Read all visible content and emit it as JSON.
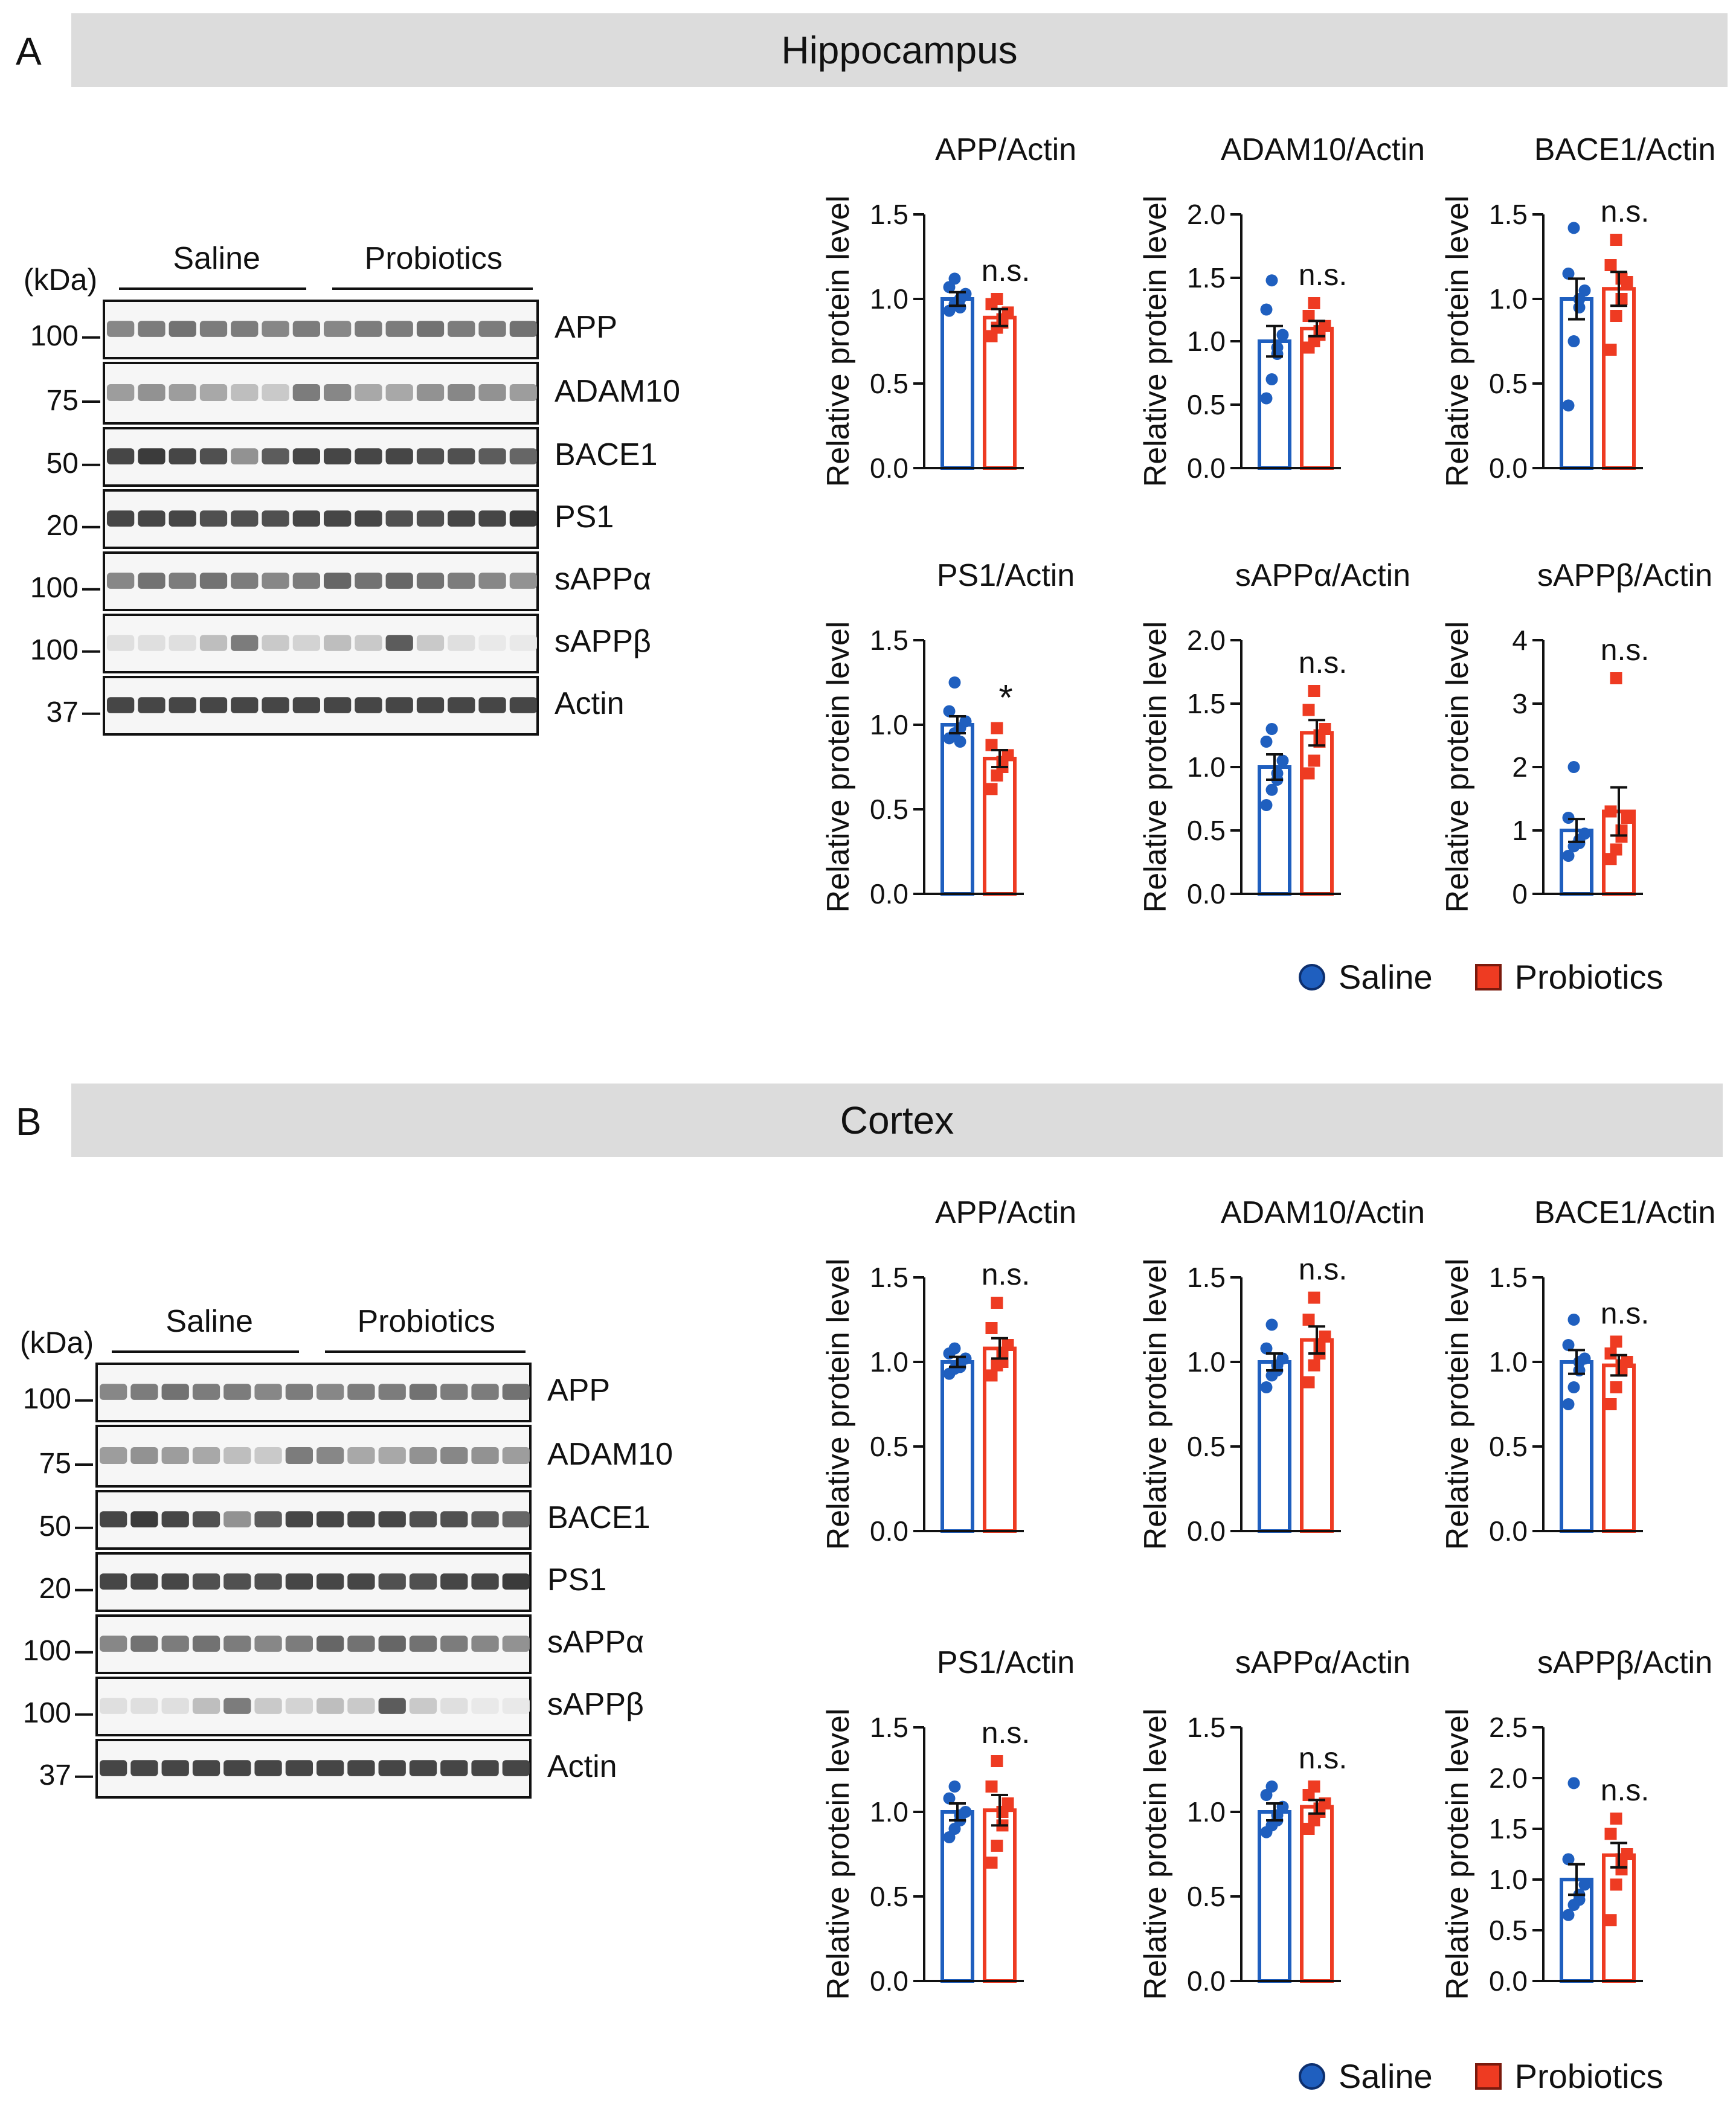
{
  "colors": {
    "saline": "#1f5fbf",
    "probiotics": "#ee3b22",
    "banner": "#dcdcdc"
  },
  "legend": {
    "saline": "Saline",
    "probiotics": "Probiotics"
  },
  "ylabel": "Relative protein level",
  "sections": [
    {
      "letter": "A",
      "title": "Hippocampus",
      "blot": {
        "kda_label": "(kDa)",
        "groups": [
          "Saline",
          "Probiotics"
        ],
        "bands": [
          "APP",
          "ADAM10",
          "BACE1",
          "PS1",
          "sAPPα",
          "sAPPβ",
          "Actin"
        ],
        "markers": [
          "100",
          "75",
          "50",
          "20",
          "100",
          "100",
          "37"
        ]
      }
    },
    {
      "letter": "B",
      "title": "Cortex",
      "blot": {
        "kda_label": "(kDa)",
        "groups": [
          "Saline",
          "Probiotics"
        ],
        "bands": [
          "APP",
          "ADAM10",
          "BACE1",
          "PS1",
          "sAPPα",
          "sAPPβ",
          "Actin"
        ],
        "markers": [
          "100",
          "75",
          "50",
          "20",
          "100",
          "100",
          "37"
        ]
      }
    }
  ],
  "chart_data": [
    {
      "section": "Hippocampus",
      "type": "bar",
      "title": "APP/Actin",
      "ylabel": "Relative protein level",
      "ylim": [
        0,
        1.5
      ],
      "yticks": [
        "0.0",
        "0.5",
        "1.0",
        "1.5"
      ],
      "annotation": "n.s.",
      "categories": [
        "Saline",
        "Probiotics"
      ],
      "series": [
        {
          "name": "Saline",
          "mean": 1.0,
          "sem": 0.04,
          "points": [
            0.93,
            0.97,
            1.0,
            1.03,
            1.07,
            1.12,
            0.95
          ]
        },
        {
          "name": "Probiotics",
          "mean": 0.89,
          "sem": 0.05,
          "points": [
            0.78,
            0.83,
            0.88,
            0.92,
            0.97,
            1.0,
            0.86
          ]
        }
      ]
    },
    {
      "section": "Hippocampus",
      "type": "bar",
      "title": "ADAM10/Actin",
      "ylabel": "Relative protein level",
      "ylim": [
        0,
        2.0
      ],
      "yticks": [
        "0.0",
        "0.5",
        "1.0",
        "1.5",
        "2.0"
      ],
      "annotation": "n.s.",
      "categories": [
        "Saline",
        "Probiotics"
      ],
      "series": [
        {
          "name": "Saline",
          "mean": 1.0,
          "sem": 0.12,
          "points": [
            0.55,
            0.7,
            0.95,
            1.05,
            1.25,
            1.48,
            0.9
          ]
        },
        {
          "name": "Probiotics",
          "mean": 1.1,
          "sem": 0.06,
          "points": [
            0.95,
            1.0,
            1.08,
            1.12,
            1.2,
            1.3,
            1.05
          ]
        }
      ]
    },
    {
      "section": "Hippocampus",
      "type": "bar",
      "title": "BACE1/Actin",
      "ylabel": "Relative protein level",
      "ylim": [
        0,
        1.5
      ],
      "yticks": [
        "0.0",
        "0.5",
        "1.0",
        "1.5"
      ],
      "annotation": "n.s.",
      "categories": [
        "Saline",
        "Probiotics"
      ],
      "series": [
        {
          "name": "Saline",
          "mean": 1.0,
          "sem": 0.12,
          "points": [
            0.37,
            0.75,
            0.95,
            1.05,
            1.15,
            1.42,
            1.0
          ]
        },
        {
          "name": "Probiotics",
          "mean": 1.06,
          "sem": 0.1,
          "points": [
            0.7,
            0.9,
            1.0,
            1.1,
            1.2,
            1.35,
            1.12
          ]
        }
      ]
    },
    {
      "section": "Hippocampus",
      "type": "bar",
      "title": "PS1/Actin",
      "ylabel": "Relative protein level",
      "ylim": [
        0,
        1.5
      ],
      "yticks": [
        "0.0",
        "0.5",
        "1.0",
        "1.5"
      ],
      "annotation": "*",
      "categories": [
        "Saline",
        "Probiotics"
      ],
      "series": [
        {
          "name": "Saline",
          "mean": 1.0,
          "sem": 0.05,
          "points": [
            0.92,
            0.95,
            0.98,
            1.02,
            1.08,
            1.25,
            0.9
          ]
        },
        {
          "name": "Probiotics",
          "mean": 0.8,
          "sem": 0.05,
          "points": [
            0.62,
            0.7,
            0.78,
            0.82,
            0.88,
            0.98,
            0.75
          ]
        }
      ]
    },
    {
      "section": "Hippocampus",
      "type": "bar",
      "title": "sAPPα/Actin",
      "ylabel": "Relative protein level",
      "ylim": [
        0,
        2.0
      ],
      "yticks": [
        "0.0",
        "0.5",
        "1.0",
        "1.5",
        "2.0"
      ],
      "annotation": "n.s.",
      "categories": [
        "Saline",
        "Probiotics"
      ],
      "series": [
        {
          "name": "Saline",
          "mean": 1.0,
          "sem": 0.1,
          "points": [
            0.7,
            0.82,
            0.95,
            1.05,
            1.2,
            1.3,
            0.9
          ]
        },
        {
          "name": "Probiotics",
          "mean": 1.27,
          "sem": 0.1,
          "points": [
            0.95,
            1.05,
            1.2,
            1.3,
            1.45,
            1.6,
            1.25
          ]
        }
      ]
    },
    {
      "section": "Hippocampus",
      "type": "bar",
      "title": "sAPPβ/Actin",
      "ylabel": "Relative protein level",
      "ylim": [
        0,
        4
      ],
      "yticks": [
        "0",
        "1",
        "2",
        "3",
        "4"
      ],
      "annotation": "n.s.",
      "categories": [
        "Saline",
        "Probiotics"
      ],
      "series": [
        {
          "name": "Saline",
          "mean": 1.0,
          "sem": 0.18,
          "points": [
            0.6,
            0.75,
            0.85,
            0.95,
            1.2,
            2.0,
            0.8
          ]
        },
        {
          "name": "Probiotics",
          "mean": 1.3,
          "sem": 0.38,
          "points": [
            0.55,
            0.7,
            0.9,
            1.2,
            1.3,
            3.4,
            1.0
          ]
        }
      ]
    },
    {
      "section": "Cortex",
      "type": "bar",
      "title": "APP/Actin",
      "ylabel": "Relative protein level",
      "ylim": [
        0,
        1.5
      ],
      "yticks": [
        "0.0",
        "0.5",
        "1.0",
        "1.5"
      ],
      "annotation": "n.s.",
      "categories": [
        "Saline",
        "Probiotics"
      ],
      "series": [
        {
          "name": "Saline",
          "mean": 1.0,
          "sem": 0.03,
          "points": [
            0.93,
            0.96,
            0.99,
            1.02,
            1.05,
            1.08,
            0.97
          ]
        },
        {
          "name": "Probiotics",
          "mean": 1.08,
          "sem": 0.06,
          "points": [
            0.92,
            0.98,
            1.05,
            1.1,
            1.2,
            1.35,
            1.0
          ]
        }
      ]
    },
    {
      "section": "Cortex",
      "type": "bar",
      "title": "ADAM10/Actin",
      "ylabel": "Relative protein level",
      "ylim": [
        0,
        1.5
      ],
      "yticks": [
        "0.0",
        "0.5",
        "1.0",
        "1.5"
      ],
      "annotation": "n.s.",
      "categories": [
        "Saline",
        "Probiotics"
      ],
      "series": [
        {
          "name": "Saline",
          "mean": 1.0,
          "sem": 0.05,
          "points": [
            0.85,
            0.92,
            0.98,
            1.02,
            1.08,
            1.22,
            0.95
          ]
        },
        {
          "name": "Probiotics",
          "mean": 1.13,
          "sem": 0.08,
          "points": [
            0.88,
            0.98,
            1.05,
            1.15,
            1.25,
            1.38,
            1.1
          ]
        }
      ]
    },
    {
      "section": "Cortex",
      "type": "bar",
      "title": "BACE1/Actin",
      "ylabel": "Relative protein level",
      "ylim": [
        0,
        1.5
      ],
      "yticks": [
        "0.0",
        "0.5",
        "1.0",
        "1.5"
      ],
      "annotation": "n.s.",
      "categories": [
        "Saline",
        "Probiotics"
      ],
      "series": [
        {
          "name": "Saline",
          "mean": 1.0,
          "sem": 0.07,
          "points": [
            0.75,
            0.85,
            0.95,
            1.02,
            1.1,
            1.25,
            1.0
          ]
        },
        {
          "name": "Probiotics",
          "mean": 0.98,
          "sem": 0.06,
          "points": [
            0.75,
            0.85,
            0.95,
            1.0,
            1.05,
            1.12,
            0.98
          ]
        }
      ]
    },
    {
      "section": "Cortex",
      "type": "bar",
      "title": "PS1/Actin",
      "ylabel": "Relative protein level",
      "ylim": [
        0,
        1.5
      ],
      "yticks": [
        "0.0",
        "0.5",
        "1.0",
        "1.5"
      ],
      "annotation": "n.s.",
      "categories": [
        "Saline",
        "Probiotics"
      ],
      "series": [
        {
          "name": "Saline",
          "mean": 1.0,
          "sem": 0.05,
          "points": [
            0.85,
            0.9,
            0.95,
            1.0,
            1.08,
            1.15,
            0.98
          ]
        },
        {
          "name": "Probiotics",
          "mean": 1.01,
          "sem": 0.09,
          "points": [
            0.7,
            0.8,
            0.92,
            1.05,
            1.15,
            1.3,
            1.0
          ]
        }
      ]
    },
    {
      "section": "Cortex",
      "type": "bar",
      "title": "sAPPα/Actin",
      "ylabel": "Relative protein level",
      "ylim": [
        0,
        1.5
      ],
      "yticks": [
        "0.0",
        "0.5",
        "1.0",
        "1.5"
      ],
      "annotation": "n.s.",
      "categories": [
        "Saline",
        "Probiotics"
      ],
      "series": [
        {
          "name": "Saline",
          "mean": 1.0,
          "sem": 0.05,
          "points": [
            0.88,
            0.92,
            0.98,
            1.03,
            1.1,
            1.15,
            0.95
          ]
        },
        {
          "name": "Probiotics",
          "mean": 1.03,
          "sem": 0.04,
          "points": [
            0.9,
            0.95,
            1.0,
            1.05,
            1.1,
            1.15,
            1.02
          ]
        }
      ]
    },
    {
      "section": "Cortex",
      "type": "bar",
      "title": "sAPPβ/Actin",
      "ylabel": "Relative protein level",
      "ylim": [
        0,
        2.5
      ],
      "yticks": [
        "0.0",
        "0.5",
        "1.0",
        "1.5",
        "2.0",
        "2.5"
      ],
      "annotation": "n.s.",
      "categories": [
        "Saline",
        "Probiotics"
      ],
      "series": [
        {
          "name": "Saline",
          "mean": 1.0,
          "sem": 0.15,
          "points": [
            0.65,
            0.75,
            0.85,
            0.95,
            1.2,
            1.95,
            0.8
          ]
        },
        {
          "name": "Probiotics",
          "mean": 1.24,
          "sem": 0.12,
          "points": [
            0.6,
            0.95,
            1.1,
            1.25,
            1.45,
            1.6,
            1.2
          ]
        }
      ]
    }
  ]
}
